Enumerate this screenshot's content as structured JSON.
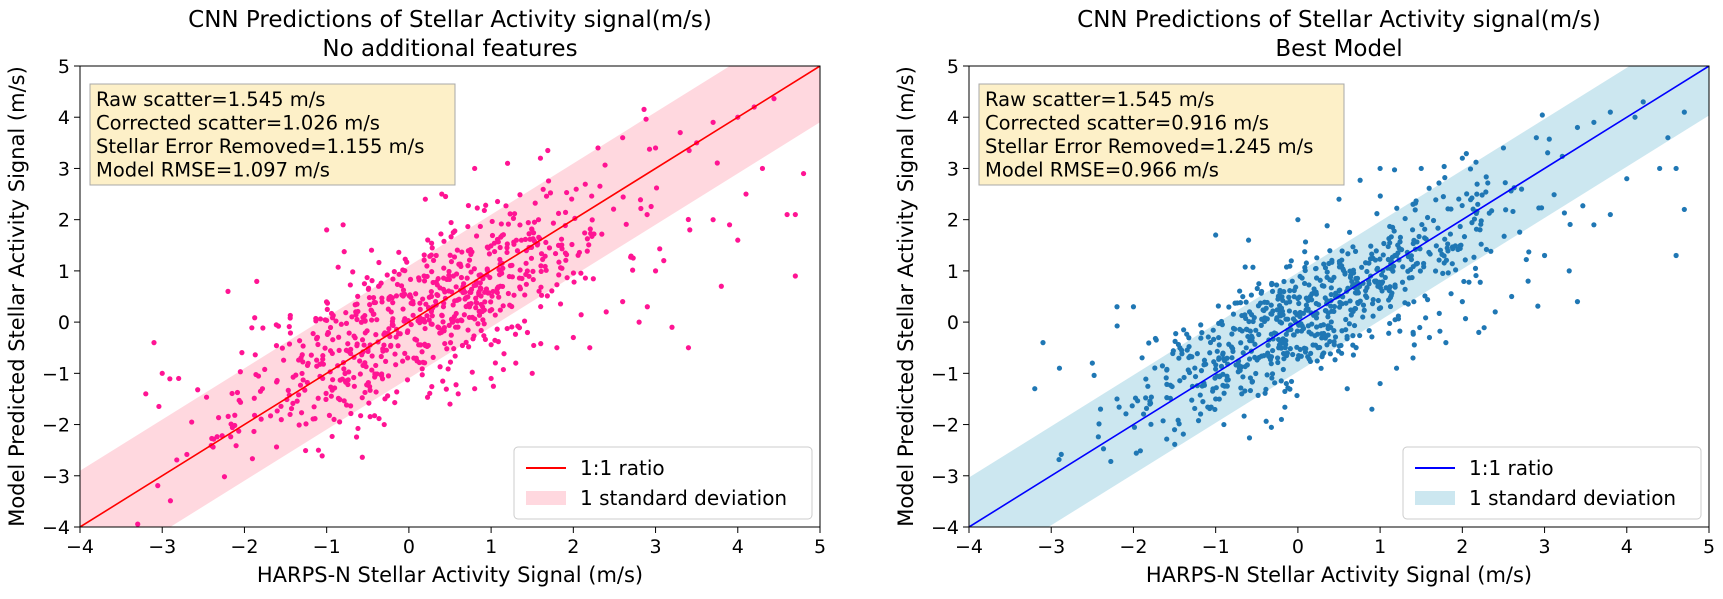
{
  "chart_data": [
    {
      "type": "scatter",
      "title_line1": "CNN Predictions of Stellar Activity signal(m/s)",
      "title_line2": "No additional features",
      "xlabel": "HARPS-N Stellar Activity Signal (m/s)",
      "ylabel": "Model Predicted Stellar Activity Signal (m/s)",
      "xlim": [
        -4,
        5
      ],
      "ylim": [
        -4,
        5
      ],
      "xticks": [
        "−4",
        "−3",
        "−2",
        "−1",
        "0",
        "1",
        "2",
        "3",
        "4",
        "5"
      ],
      "yticks": [
        "−4",
        "−3",
        "−2",
        "−1",
        "0",
        "1",
        "2",
        "3",
        "4",
        "5"
      ],
      "grid": false,
      "stats": [
        "Raw scatter=1.545 m/s",
        "Corrected scatter=1.026 m/s",
        "Stellar Error Removed=1.155 m/s",
        "Model RMSE=1.097 m/s"
      ],
      "band_halfwidth": 1.097,
      "legend": {
        "line": "1:1 ratio",
        "band": "1 standard deviation",
        "location": "lower-right"
      },
      "colors": {
        "points": "#ff1493",
        "line": "#ff0000",
        "band": "#ffc0cb"
      },
      "seed": 11,
      "scatter_sigma": 0.75,
      "points": [
        [
          -3.2,
          -1.4
        ],
        [
          -3.0,
          -1.0
        ],
        [
          -3.1,
          -0.4
        ],
        [
          -2.8,
          -1.1
        ],
        [
          -2.2,
          0.6
        ],
        [
          -1.0,
          1.8
        ],
        [
          -0.8,
          1.9
        ],
        [
          -1.1,
          -2.5
        ],
        [
          -0.3,
          -2.0
        ],
        [
          0.0,
          2.9
        ],
        [
          0.2,
          2.4
        ],
        [
          0.4,
          2.5
        ],
        [
          0.8,
          3.0
        ],
        [
          1.2,
          3.1
        ],
        [
          1.6,
          3.2
        ],
        [
          2.3,
          3.4
        ],
        [
          2.6,
          3.6
        ],
        [
          3.0,
          3.4
        ],
        [
          3.3,
          3.7
        ],
        [
          3.5,
          3.5
        ],
        [
          3.7,
          3.9
        ],
        [
          4.0,
          4.0
        ],
        [
          4.2,
          4.2
        ],
        [
          4.3,
          3.0
        ],
        [
          4.6,
          2.1
        ],
        [
          4.7,
          2.1
        ],
        [
          4.7,
          0.9
        ],
        [
          4.8,
          2.9
        ],
        [
          3.7,
          2.0
        ],
        [
          3.9,
          1.9
        ],
        [
          4.0,
          1.6
        ],
        [
          4.1,
          2.5
        ],
        [
          3.8,
          0.7
        ],
        [
          3.4,
          -0.5
        ],
        [
          3.1,
          1.2
        ],
        [
          3.2,
          -0.1
        ],
        [
          2.9,
          0.3
        ],
        [
          2.8,
          0.0
        ],
        [
          3.0,
          1.0
        ],
        [
          2.6,
          0.4
        ],
        [
          2.4,
          0.2
        ],
        [
          2.2,
          -0.5
        ],
        [
          2.0,
          -0.3
        ],
        [
          1.8,
          -0.5
        ],
        [
          1.5,
          -1.0
        ],
        [
          1.3,
          -0.8
        ],
        [
          1.0,
          -1.1
        ],
        [
          0.8,
          -1.3
        ],
        [
          0.5,
          -1.6
        ],
        [
          0.6,
          -1.4
        ]
      ]
    },
    {
      "type": "scatter",
      "title_line1": "CNN Predictions of Stellar Activity signal(m/s)",
      "title_line2": "Best Model",
      "xlabel": "HARPS-N Stellar Activity Signal (m/s)",
      "ylabel": "Model Predicted Stellar Activity Signal (m/s)",
      "xlim": [
        -4,
        5
      ],
      "ylim": [
        -4,
        5
      ],
      "xticks": [
        "−4",
        "−3",
        "−2",
        "−1",
        "0",
        "1",
        "2",
        "3",
        "4",
        "5"
      ],
      "yticks": [
        "−4",
        "−3",
        "−2",
        "−1",
        "0",
        "1",
        "2",
        "3",
        "4",
        "5"
      ],
      "grid": false,
      "stats": [
        "Raw scatter=1.545 m/s",
        "Corrected scatter=0.916 m/s",
        "Stellar Error Removed=1.245 m/s",
        "Model RMSE=0.966 m/s"
      ],
      "band_halfwidth": 0.966,
      "legend": {
        "line": "1:1 ratio",
        "band": "1 standard deviation",
        "location": "lower-right"
      },
      "colors": {
        "points": "#1f77b4",
        "line": "#0000ff",
        "band": "#add8e6"
      },
      "seed": 29,
      "scatter_sigma": 0.62,
      "points": [
        [
          -3.1,
          -0.4
        ],
        [
          -3.2,
          -1.3
        ],
        [
          -2.9,
          -0.9
        ],
        [
          -2.5,
          -0.8
        ],
        [
          -2.2,
          0.3
        ],
        [
          -2.0,
          0.3
        ],
        [
          -1.0,
          1.7
        ],
        [
          -0.6,
          1.6
        ],
        [
          -0.9,
          -2.0
        ],
        [
          -0.2,
          -1.9
        ],
        [
          0.0,
          2.0
        ],
        [
          0.5,
          2.4
        ],
        [
          1.0,
          3.0
        ],
        [
          1.5,
          3.0
        ],
        [
          2.0,
          3.2
        ],
        [
          2.5,
          3.4
        ],
        [
          2.9,
          3.6
        ],
        [
          3.4,
          3.8
        ],
        [
          3.6,
          3.9
        ],
        [
          3.8,
          4.1
        ],
        [
          4.1,
          4.0
        ],
        [
          4.2,
          4.3
        ],
        [
          4.5,
          3.6
        ],
        [
          4.7,
          4.1
        ],
        [
          4.6,
          3.0
        ],
        [
          4.7,
          2.2
        ],
        [
          4.6,
          1.3
        ],
        [
          4.4,
          3.0
        ],
        [
          4.0,
          2.8
        ],
        [
          3.8,
          2.1
        ],
        [
          3.6,
          1.9
        ],
        [
          3.4,
          0.4
        ],
        [
          3.3,
          1.0
        ],
        [
          3.0,
          1.3
        ],
        [
          2.8,
          0.8
        ],
        [
          2.6,
          0.5
        ],
        [
          2.4,
          0.2
        ],
        [
          2.2,
          -0.2
        ],
        [
          2.0,
          0.4
        ],
        [
          1.8,
          -0.4
        ],
        [
          1.6,
          -0.3
        ],
        [
          1.4,
          -0.7
        ],
        [
          1.2,
          -0.9
        ],
        [
          1.0,
          -1.2
        ],
        [
          0.9,
          -1.7
        ],
        [
          0.6,
          -1.3
        ],
        [
          -1.0,
          -1.5
        ],
        [
          -1.5,
          -2.1
        ],
        [
          -1.8,
          -1.6
        ],
        [
          -2.2,
          -1.5
        ]
      ]
    }
  ]
}
